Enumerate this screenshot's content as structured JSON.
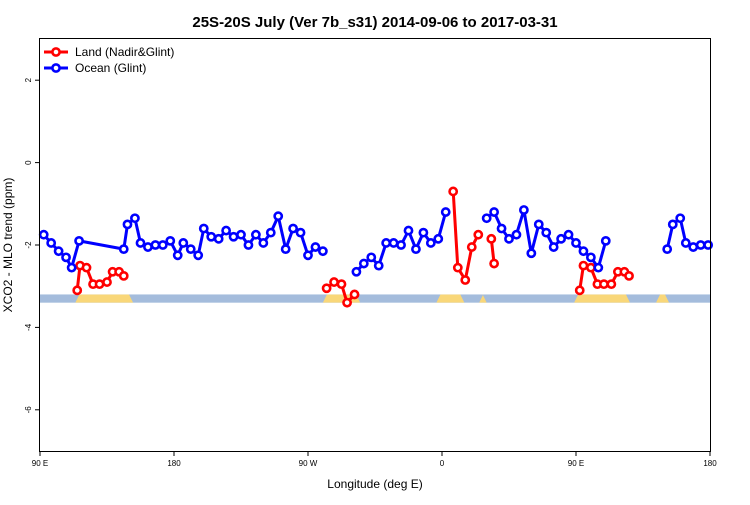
{
  "chart_data": {
    "type": "line",
    "title": "25S-20S July (Ver 7b_s31)   2014-09-06 to 2017-03-31",
    "xlabel": "Longitude (deg E)",
    "ylabel": "XCO2 - MLO trend (ppm)",
    "xlim": [
      90,
      450
    ],
    "ylim": [
      -7,
      3
    ],
    "x_ticks": [
      {
        "value": 90,
        "label": "90 E"
      },
      {
        "value": 162,
        "label": "180"
      },
      {
        "value": 234,
        "label": "90 W"
      },
      {
        "value": 306,
        "label": "0"
      },
      {
        "value": 378,
        "label": "90 E"
      },
      {
        "value": 450,
        "label": "180"
      }
    ],
    "y_ticks": [
      {
        "value": 2,
        "label": "2"
      },
      {
        "value": 0,
        "label": "0"
      },
      {
        "value": -2,
        "label": "-2"
      },
      {
        "value": -4,
        "label": "-4"
      },
      {
        "value": -6,
        "label": "-6"
      }
    ],
    "grid": false,
    "legend_position": "top-left",
    "land_band": {
      "y_range": [
        -3.4,
        -3.2
      ],
      "ocean_color": "#a4bcdc",
      "land_color": "#f9d779",
      "land_segments": [
        [
          109,
          140
        ],
        [
          242,
          262
        ],
        [
          303,
          318
        ],
        [
          326,
          330
        ],
        [
          377,
          407
        ],
        [
          421,
          428
        ]
      ]
    },
    "series": [
      {
        "name": "Land (Nadir&Glint)",
        "color": "#ff0000",
        "segments": [
          [
            [
              110,
              -3.1
            ],
            [
              111.5,
              -2.5
            ],
            [
              115,
              -2.55
            ],
            [
              118.5,
              -2.95
            ],
            [
              122,
              -2.95
            ],
            [
              126,
              -2.9
            ],
            [
              129,
              -2.65
            ],
            [
              132.5,
              -2.65
            ],
            [
              135,
              -2.75
            ]
          ],
          [
            [
              244,
              -3.05
            ],
            [
              248,
              -2.9
            ],
            [
              252,
              -2.95
            ],
            [
              255,
              -3.4
            ],
            [
              259,
              -3.2
            ]
          ],
          [
            [
              312,
              -0.7
            ],
            [
              314.5,
              -2.55
            ],
            [
              318.5,
              -2.85
            ],
            [
              322,
              -2.05
            ],
            [
              325.5,
              -1.75
            ]
          ],
          [
            [
              332.5,
              -1.85
            ],
            [
              334,
              -2.45
            ]
          ],
          [
            [
              380,
              -3.1
            ],
            [
              382,
              -2.5
            ],
            [
              386,
              -2.55
            ],
            [
              389.5,
              -2.95
            ],
            [
              393,
              -2.95
            ],
            [
              397,
              -2.95
            ],
            [
              400.5,
              -2.65
            ],
            [
              404,
              -2.65
            ],
            [
              406.5,
              -2.75
            ]
          ]
        ]
      },
      {
        "name": "Ocean (Glint)",
        "color": "#0000ff",
        "segments": [
          [
            [
              92,
              -1.75
            ],
            [
              96,
              -1.95
            ],
            [
              100,
              -2.15
            ],
            [
              104,
              -2.3
            ],
            [
              107,
              -2.55
            ],
            [
              111,
              -1.9
            ],
            [
              135,
              -2.1
            ],
            [
              137,
              -1.5
            ],
            [
              141,
              -1.35
            ],
            [
              144,
              -1.95
            ],
            [
              148,
              -2.05
            ],
            [
              152,
              -2.0
            ],
            [
              156,
              -2.0
            ],
            [
              160,
              -1.9
            ],
            [
              164,
              -2.25
            ],
            [
              167,
              -1.95
            ],
            [
              171,
              -2.1
            ],
            [
              175,
              -2.25
            ],
            [
              178,
              -1.6
            ],
            [
              182,
              -1.8
            ],
            [
              186,
              -1.85
            ],
            [
              190,
              -1.65
            ],
            [
              194,
              -1.8
            ],
            [
              198,
              -1.75
            ],
            [
              202,
              -2.0
            ],
            [
              206,
              -1.75
            ],
            [
              210,
              -1.95
            ],
            [
              214,
              -1.7
            ],
            [
              218,
              -1.3
            ],
            [
              222,
              -2.1
            ],
            [
              226,
              -1.6
            ],
            [
              230,
              -1.7
            ],
            [
              234,
              -2.25
            ],
            [
              238,
              -2.05
            ],
            [
              242,
              -2.15
            ]
          ],
          [
            [
              260,
              -2.65
            ],
            [
              264,
              -2.45
            ],
            [
              268,
              -2.3
            ],
            [
              272,
              -2.5
            ],
            [
              276,
              -1.95
            ],
            [
              280,
              -1.95
            ],
            [
              284,
              -2.0
            ],
            [
              288,
              -1.65
            ],
            [
              292,
              -2.1
            ],
            [
              296,
              -1.7
            ],
            [
              300,
              -1.95
            ],
            [
              304,
              -1.85
            ],
            [
              308,
              -1.2
            ]
          ],
          [
            [
              330,
              -1.35
            ],
            [
              334,
              -1.2
            ],
            [
              338,
              -1.6
            ],
            [
              342,
              -1.85
            ],
            [
              346,
              -1.75
            ],
            [
              350,
              -1.15
            ],
            [
              354,
              -2.2
            ],
            [
              358,
              -1.5
            ],
            [
              362,
              -1.7
            ],
            [
              366,
              -2.05
            ],
            [
              370,
              -1.85
            ],
            [
              374,
              -1.75
            ],
            [
              378,
              -1.95
            ],
            [
              382,
              -2.15
            ],
            [
              386,
              -2.3
            ],
            [
              390,
              -2.55
            ],
            [
              394,
              -1.9
            ]
          ],
          [
            [
              427,
              -2.1
            ],
            [
              430,
              -1.5
            ],
            [
              434,
              -1.35
            ],
            [
              437,
              -1.95
            ],
            [
              441,
              -2.05
            ],
            [
              445,
              -2.0
            ],
            [
              449,
              -2.0
            ]
          ]
        ]
      }
    ]
  }
}
